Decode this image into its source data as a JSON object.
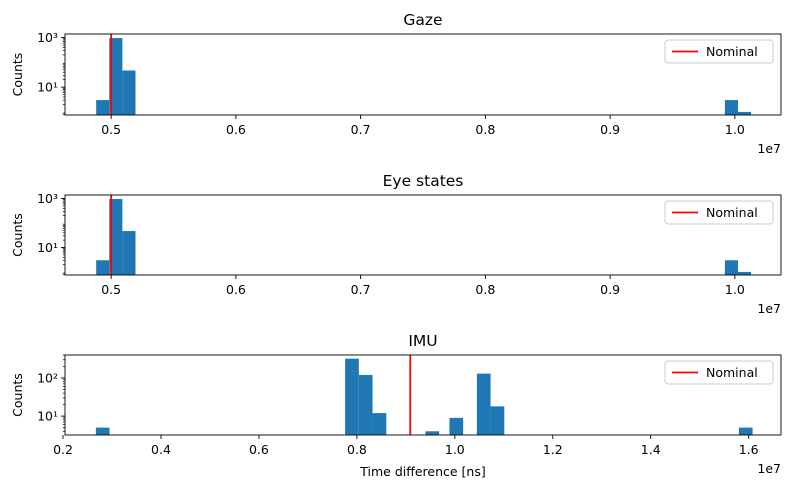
{
  "chart_data": [
    {
      "type": "bar",
      "title": "Gaze",
      "xlabel": "",
      "ylabel": "Counts",
      "x_offset_label": "1e7",
      "xscale": "linear",
      "yscale": "log",
      "xlim": [
        4630000,
        10370000
      ],
      "ylim": [
        0.75,
        1400
      ],
      "xticks": [
        0.5,
        0.6,
        0.7,
        0.8,
        0.9,
        1.0
      ],
      "xtick_labels": [
        "0.5",
        "0.6",
        "0.7",
        "0.8",
        "0.9",
        "1.0"
      ],
      "yticks": [
        10,
        1000
      ],
      "ytick_labels": [
        "10¹",
        "10³"
      ],
      "bins": [
        {
          "x0": 4880000,
          "x1": 4985000,
          "count": 3
        },
        {
          "x0": 4985000,
          "x1": 5090000,
          "count": 960
        },
        {
          "x0": 5090000,
          "x1": 5195000,
          "count": 47
        },
        {
          "x0": 9920000,
          "x1": 10025000,
          "count": 3
        },
        {
          "x0": 10025000,
          "x1": 10130000,
          "count": 1
        }
      ],
      "nominal": 5000000,
      "legend": [
        {
          "name": "Nominal",
          "color": "#ff0000"
        }
      ],
      "legend_position": "upper right",
      "grid": false
    },
    {
      "type": "bar",
      "title": "Eye states",
      "xlabel": "",
      "ylabel": "Counts",
      "x_offset_label": "1e7",
      "xscale": "linear",
      "yscale": "log",
      "xlim": [
        4630000,
        10370000
      ],
      "ylim": [
        0.75,
        1400
      ],
      "xticks": [
        0.5,
        0.6,
        0.7,
        0.8,
        0.9,
        1.0
      ],
      "xtick_labels": [
        "0.5",
        "0.6",
        "0.7",
        "0.8",
        "0.9",
        "1.0"
      ],
      "yticks": [
        10,
        1000
      ],
      "ytick_labels": [
        "10¹",
        "10³"
      ],
      "bins": [
        {
          "x0": 4880000,
          "x1": 4985000,
          "count": 3
        },
        {
          "x0": 4985000,
          "x1": 5090000,
          "count": 960
        },
        {
          "x0": 5090000,
          "x1": 5195000,
          "count": 47
        },
        {
          "x0": 9920000,
          "x1": 10025000,
          "count": 3
        },
        {
          "x0": 10025000,
          "x1": 10130000,
          "count": 1
        }
      ],
      "nominal": 5000000,
      "legend": [
        {
          "name": "Nominal",
          "color": "#ff0000"
        }
      ],
      "legend_position": "upper right",
      "grid": false
    },
    {
      "type": "bar",
      "title": "IMU",
      "xlabel": "Time difference [ns]",
      "ylabel": "Counts",
      "x_offset_label": "1e7",
      "xscale": "linear",
      "yscale": "log",
      "xlim": [
        2040000,
        16660000
      ],
      "ylim": [
        3.2,
        400
      ],
      "xticks": [
        0.2,
        0.4,
        0.6,
        0.8,
        1.0,
        1.2,
        1.4,
        1.6
      ],
      "xtick_labels": [
        "0.2",
        "0.4",
        "0.6",
        "0.8",
        "1.0",
        "1.2",
        "1.4",
        "1.6"
      ],
      "yticks": [
        10,
        100
      ],
      "ytick_labels": [
        "10¹",
        "10²"
      ],
      "bins": [
        {
          "x0": 2670000,
          "x1": 2950000,
          "count": 5
        },
        {
          "x0": 7760000,
          "x1": 8040000,
          "count": 320
        },
        {
          "x0": 8040000,
          "x1": 8320000,
          "count": 120
        },
        {
          "x0": 8320000,
          "x1": 8600000,
          "count": 12
        },
        {
          "x0": 9400000,
          "x1": 9680000,
          "count": 4
        },
        {
          "x0": 9890000,
          "x1": 10170000,
          "count": 9
        },
        {
          "x0": 10450000,
          "x1": 10730000,
          "count": 130
        },
        {
          "x0": 10730000,
          "x1": 11010000,
          "count": 18
        },
        {
          "x0": 15800000,
          "x1": 16080000,
          "count": 5
        }
      ],
      "nominal": 9090000,
      "legend": [
        {
          "name": "Nominal",
          "color": "#ff0000"
        }
      ],
      "legend_position": "upper right",
      "grid": false
    }
  ],
  "colors": {
    "bars": "#1f77b4",
    "nominal": "#ff0000"
  }
}
